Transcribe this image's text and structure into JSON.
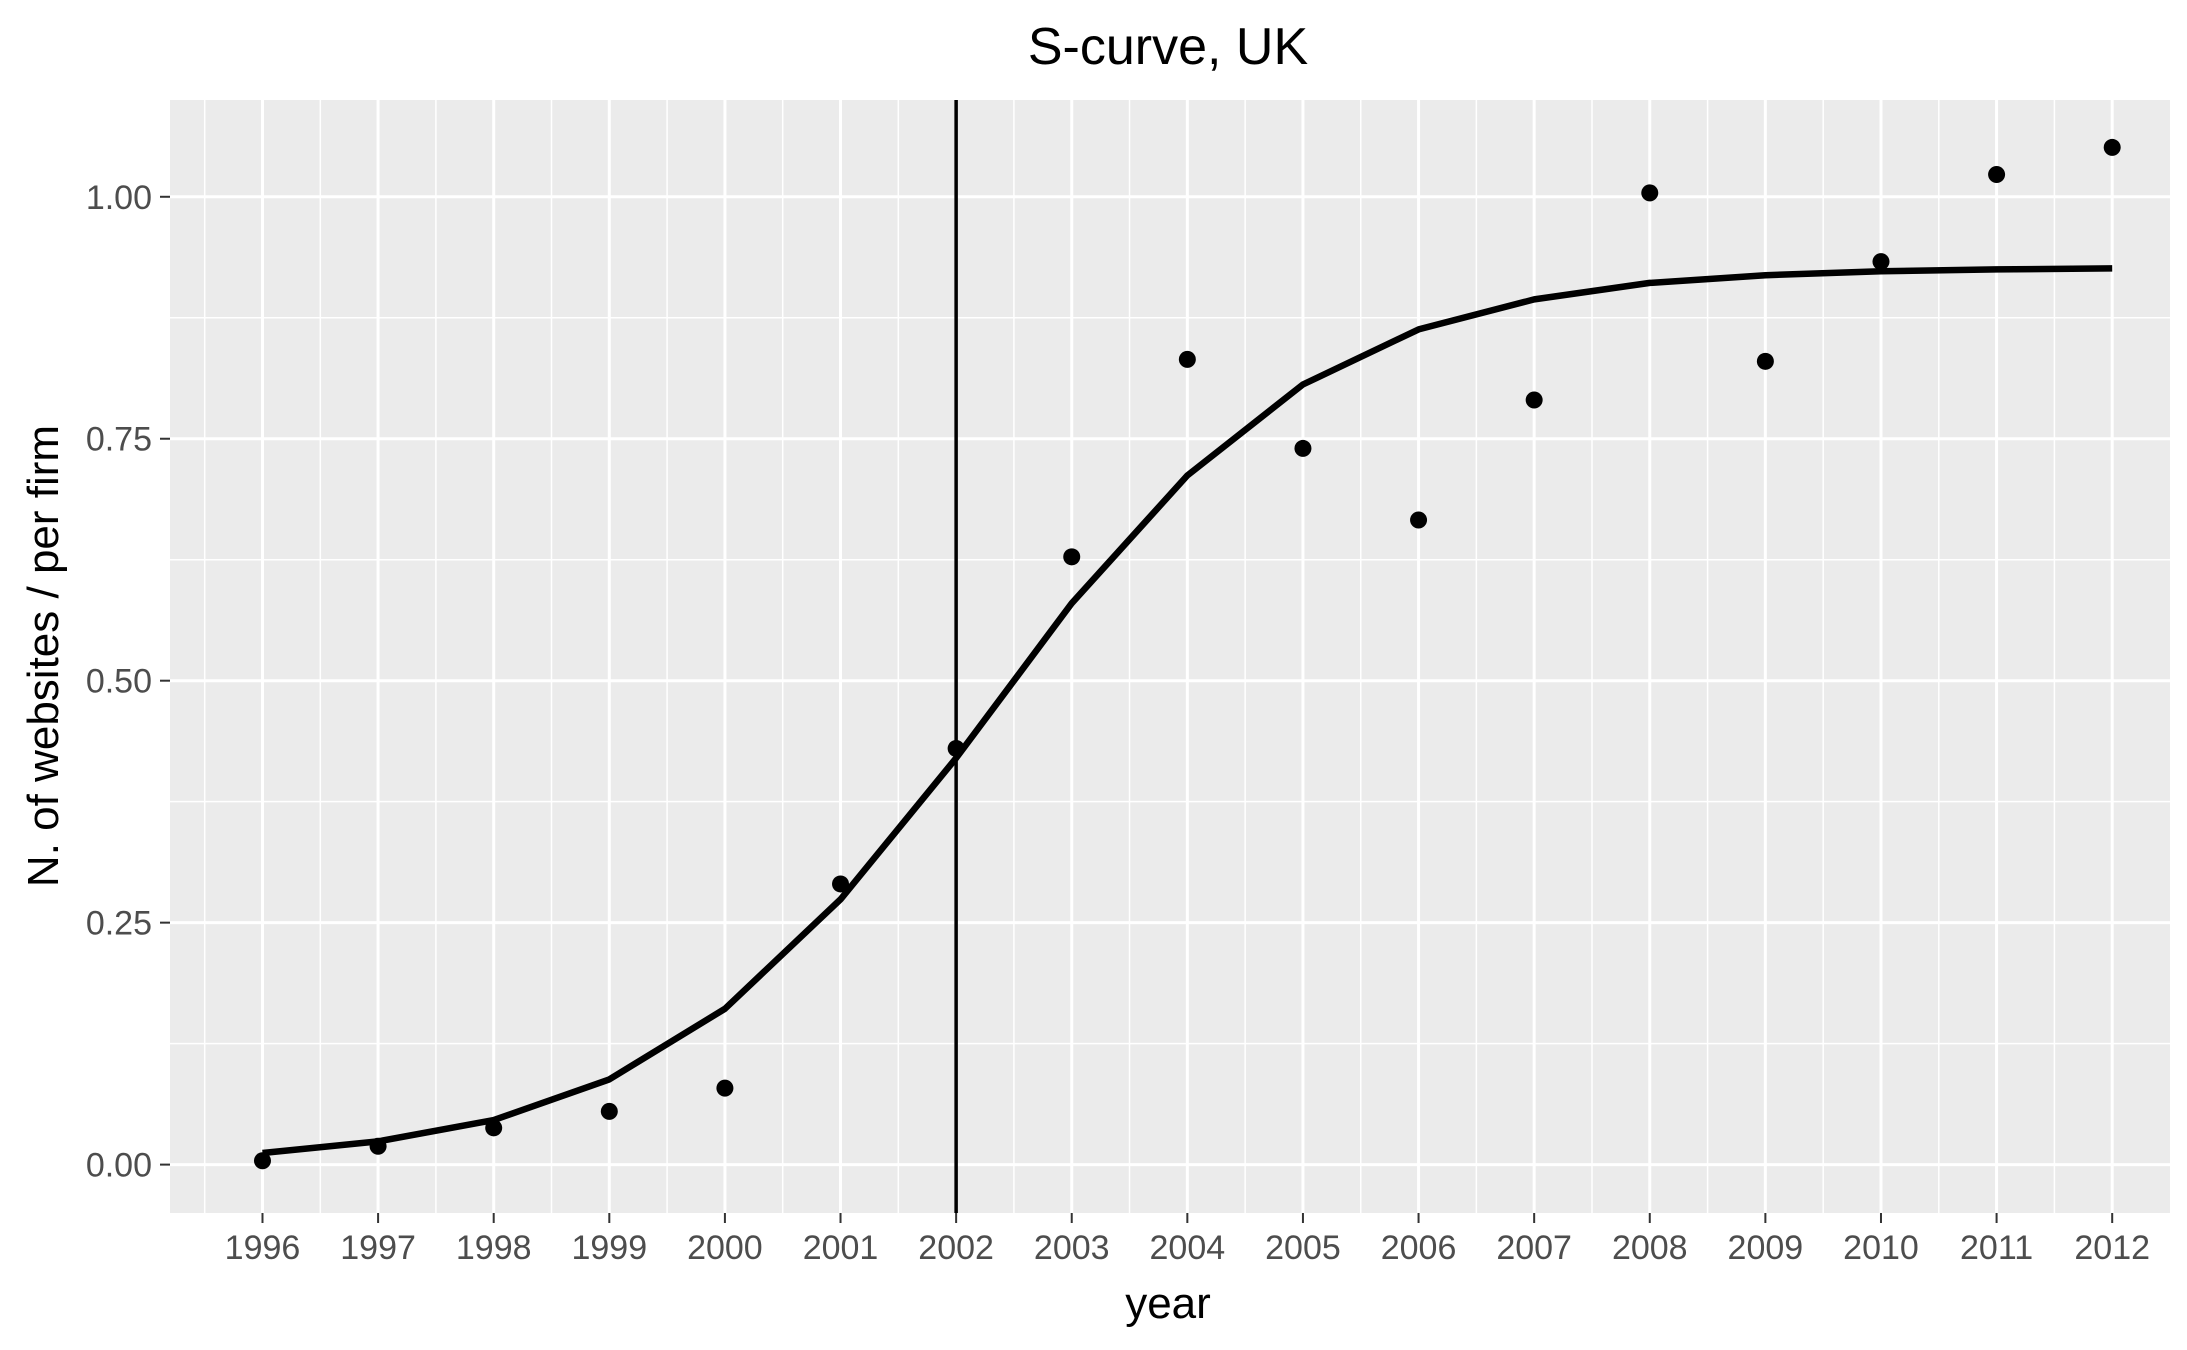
{
  "chart_data": {
    "type": "scatter",
    "title": "S-curve, UK",
    "xlabel": "year",
    "ylabel": "N. of websites / per firm",
    "x_ticks": [
      "1996",
      "1997",
      "1998",
      "1999",
      "2000",
      "2001",
      "2002",
      "2003",
      "2004",
      "2005",
      "2006",
      "2007",
      "2008",
      "2009",
      "2010",
      "2011",
      "2012"
    ],
    "y_ticks": [
      "0.00",
      "0.25",
      "0.50",
      "0.75",
      "1.00"
    ],
    "xlim": [
      1995.2,
      2012.5
    ],
    "ylim": [
      -0.05,
      1.1
    ],
    "grid": true,
    "background": "#ebebeb",
    "points": {
      "x": [
        1996,
        1997,
        1998,
        1999,
        2000,
        2001,
        2002,
        2003,
        2004,
        2005,
        2006,
        2007,
        2008,
        2009,
        2010,
        2011,
        2012
      ],
      "y": [
        0.004,
        0.019,
        0.038,
        0.055,
        0.079,
        0.29,
        0.43,
        0.628,
        0.832,
        0.74,
        0.666,
        0.79,
        1.004,
        0.83,
        0.933,
        1.023,
        1.051
      ]
    },
    "fit_line": {
      "x": [
        1996,
        1997,
        1998,
        1999,
        2000,
        2001,
        2002,
        2003,
        2004,
        2005,
        2006,
        2007,
        2008,
        2009,
        2010,
        2011,
        2012
      ],
      "y": [
        0.012,
        0.024,
        0.046,
        0.088,
        0.161,
        0.274,
        0.42,
        0.58,
        0.712,
        0.806,
        0.863,
        0.894,
        0.911,
        0.919,
        0.923,
        0.925,
        0.926
      ]
    },
    "vline_x": 2002,
    "colors": {
      "mark": "#000000",
      "panel": "#ebebeb",
      "grid": "#ffffff"
    }
  }
}
